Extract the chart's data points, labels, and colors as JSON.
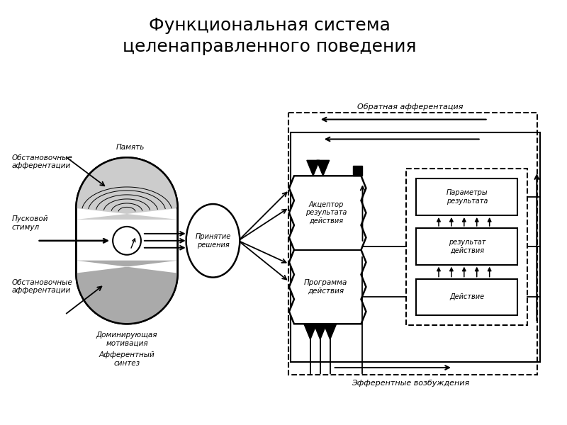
{
  "title_line1": "Функциональная система",
  "title_line2": "целенаправленного поведения",
  "title_fontsize": 18,
  "bg_color": "#ffffff",
  "labels": {
    "pamyat": "Память",
    "obstanov1": "Обстановочные\nафферентации",
    "puskovoy": "Пусковой\nстимул",
    "obstanov2": "Обстановочные\nафферентации",
    "dominir": "Доминирующая\nмотивация",
    "afferentny": "Афферентный\nсинтез",
    "prinyatie": "Принятие\nрешения",
    "aktseptor": "Акцептор\nрезультата\nдействия",
    "programma": "Программа\nдействия",
    "parametry": "Параметры\nрезультата",
    "rezultat": "результат\nдействия",
    "deystvie": "Действие",
    "obratnaya": "Обратная афферентация",
    "efferentnye": "Эфферентные возбуждения"
  }
}
